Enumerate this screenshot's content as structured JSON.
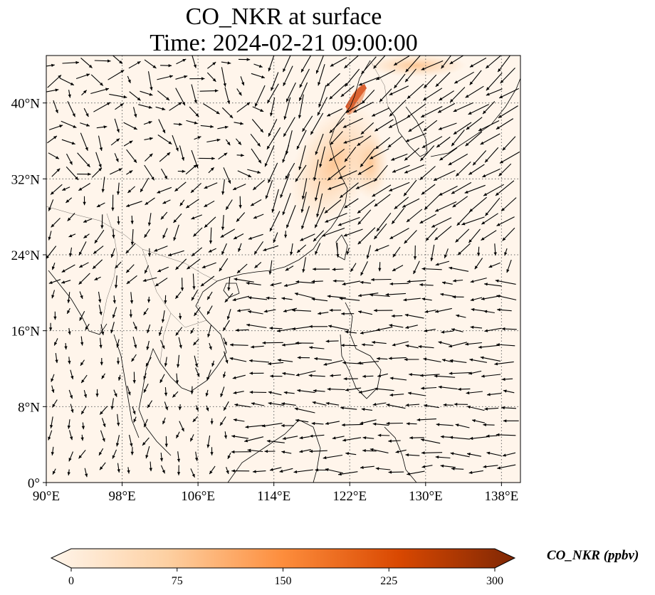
{
  "title": "CO_NKR at surface",
  "time_label": "Time: 2024-02-21 09:00:00",
  "map": {
    "lon_range": [
      90,
      140
    ],
    "lat_range": [
      0,
      45
    ],
    "lon_ticks": [
      {
        "value": 90,
        "label": "90°E"
      },
      {
        "value": 98,
        "label": "98°E"
      },
      {
        "value": 106,
        "label": "106°E"
      },
      {
        "value": 114,
        "label": "114°E"
      },
      {
        "value": 122,
        "label": "122°E"
      },
      {
        "value": 130,
        "label": "130°E"
      },
      {
        "value": 138,
        "label": "138°E"
      }
    ],
    "lat_ticks": [
      {
        "value": 0,
        "label": "0°"
      },
      {
        "value": 8,
        "label": "8°N"
      },
      {
        "value": 16,
        "label": "16°N"
      },
      {
        "value": 24,
        "label": "24°N"
      },
      {
        "value": 32,
        "label": "32°N"
      },
      {
        "value": 40,
        "label": "40°N"
      }
    ],
    "gridlines": true,
    "vector_field": "wind"
  },
  "colorbar": {
    "title": "CO_NKR (ppbv)",
    "range": [
      0,
      300
    ],
    "ticks": [
      {
        "value": 0,
        "label": "0"
      },
      {
        "value": 75,
        "label": "75"
      },
      {
        "value": 150,
        "label": "150"
      },
      {
        "value": 225,
        "label": "225"
      },
      {
        "value": 300,
        "label": "300"
      }
    ],
    "colormap": [
      "#fff5eb",
      "#fdd0a2",
      "#fd8d3c",
      "#d94801",
      "#7f2704"
    ]
  }
}
